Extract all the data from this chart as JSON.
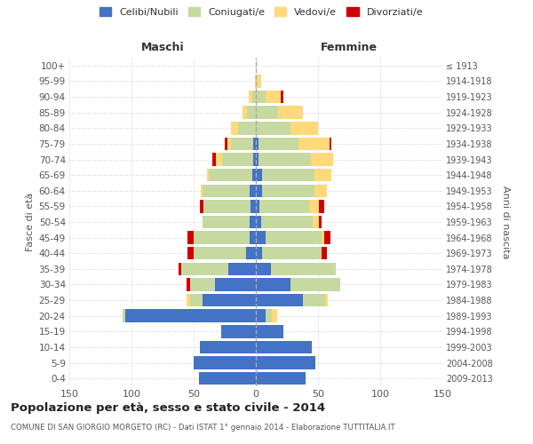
{
  "age_groups": [
    "0-4",
    "5-9",
    "10-14",
    "15-19",
    "20-24",
    "25-29",
    "30-34",
    "35-39",
    "40-44",
    "45-49",
    "50-54",
    "55-59",
    "60-64",
    "65-69",
    "70-74",
    "75-79",
    "80-84",
    "85-89",
    "90-94",
    "95-99",
    "100+"
  ],
  "birth_years": [
    "2009-2013",
    "2004-2008",
    "1999-2003",
    "1994-1998",
    "1989-1993",
    "1984-1988",
    "1979-1983",
    "1974-1978",
    "1969-1973",
    "1964-1968",
    "1959-1963",
    "1954-1958",
    "1949-1953",
    "1944-1948",
    "1939-1943",
    "1934-1938",
    "1929-1933",
    "1924-1928",
    "1919-1923",
    "1914-1918",
    "≤ 1913"
  ],
  "males": {
    "celibi": [
      46,
      50,
      45,
      28,
      105,
      43,
      33,
      22,
      8,
      5,
      5,
      4,
      5,
      3,
      2,
      2,
      0,
      0,
      0,
      0,
      0
    ],
    "coniugati": [
      0,
      0,
      0,
      0,
      2,
      10,
      20,
      38,
      42,
      45,
      38,
      38,
      38,
      35,
      25,
      18,
      14,
      7,
      3,
      0,
      0
    ],
    "vedovi": [
      0,
      0,
      0,
      0,
      0,
      3,
      0,
      0,
      0,
      0,
      0,
      0,
      1,
      1,
      5,
      3,
      6,
      4,
      3,
      1,
      0
    ],
    "divorziati": [
      0,
      0,
      0,
      0,
      0,
      0,
      3,
      2,
      5,
      5,
      0,
      3,
      0,
      0,
      3,
      2,
      0,
      0,
      0,
      0,
      0
    ]
  },
  "females": {
    "nubili": [
      40,
      48,
      45,
      22,
      8,
      38,
      28,
      12,
      5,
      8,
      4,
      3,
      5,
      5,
      2,
      2,
      0,
      0,
      0,
      0,
      0
    ],
    "coniugate": [
      0,
      0,
      0,
      0,
      5,
      18,
      40,
      52,
      48,
      45,
      42,
      40,
      42,
      42,
      42,
      32,
      28,
      18,
      8,
      1,
      0
    ],
    "vedove": [
      0,
      0,
      0,
      0,
      4,
      2,
      0,
      0,
      0,
      2,
      5,
      8,
      10,
      14,
      18,
      25,
      22,
      20,
      12,
      3,
      1
    ],
    "divorziate": [
      0,
      0,
      0,
      0,
      0,
      0,
      0,
      0,
      4,
      5,
      2,
      4,
      0,
      0,
      0,
      2,
      0,
      0,
      2,
      0,
      0
    ]
  },
  "colors": {
    "celibi": "#4472C4",
    "coniugati": "#C5D9A0",
    "vedovi": "#FFD97A",
    "divorziati": "#D00000"
  },
  "title": "Popolazione per età, sesso e stato civile - 2014",
  "subtitle": "COMUNE DI SAN GIORGIO MORGETO (RC) - Dati ISTAT 1° gennaio 2014 - Elaborazione TUTTITALIA.IT",
  "xlabel_left": "Maschi",
  "xlabel_right": "Femmine",
  "ylabel_left": "Fasce di età",
  "ylabel_right": "Anni di nascita",
  "xlim": 150,
  "bg_color": "#ffffff",
  "grid_color": "#cccccc",
  "legend_labels": [
    "Celibi/Nubili",
    "Coniugati/e",
    "Vedovi/e",
    "Divorziati/e"
  ]
}
